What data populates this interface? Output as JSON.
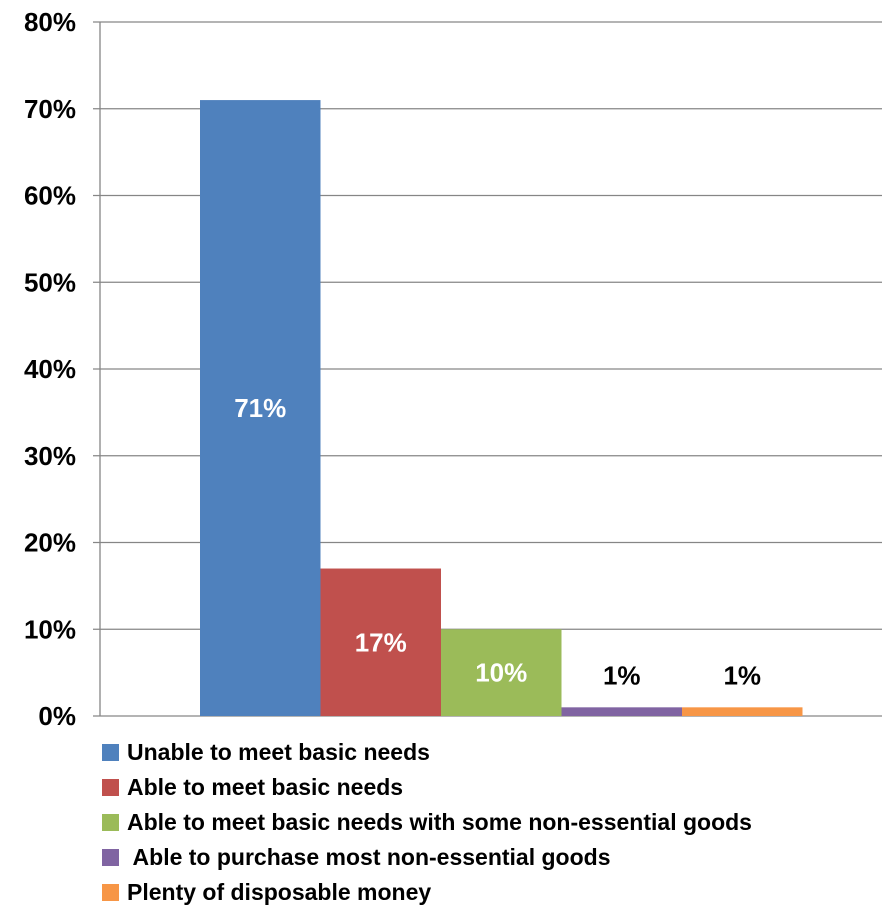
{
  "chart_data": {
    "type": "bar",
    "title": "",
    "xlabel": "",
    "ylabel": "",
    "ylim": [
      0,
      0.8
    ],
    "yticks": [
      "0%",
      "10%",
      "20%",
      "30%",
      "40%",
      "50%",
      "60%",
      "70%",
      "80%"
    ],
    "grid": true,
    "legend_position": "bottom",
    "series": [
      {
        "name": "Unable to meet basic needs",
        "value": 0.71,
        "label": "71%",
        "color": "#4F81BD",
        "label_color": "#ffffff"
      },
      {
        "name": "Able to meet basic needs",
        "value": 0.17,
        "label": "17%",
        "color": "#C0504D",
        "label_color": "#ffffff"
      },
      {
        "name": "Able to meet basic needs with some non-essential goods",
        "value": 0.1,
        "label": "10%",
        "color": "#9BBB59",
        "label_color": "#ffffff"
      },
      {
        "name": " Able to purchase most non-essential goods",
        "value": 0.01,
        "label": "1%",
        "color": "#8064A2",
        "label_color": "#000000"
      },
      {
        "name": "Plenty of disposable money",
        "value": 0.01,
        "label": "1%",
        "color": "#F79646",
        "label_color": "#000000"
      }
    ]
  }
}
